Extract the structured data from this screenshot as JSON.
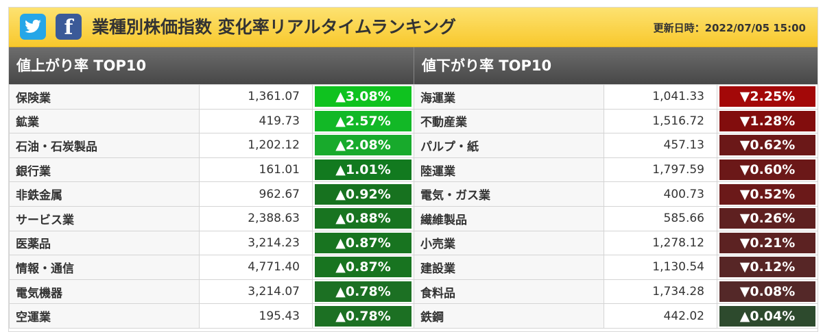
{
  "header": {
    "title": "業種別株価指数 変化率リアルタイムランキング",
    "updated": "更新日時：2022/07/05 15:00"
  },
  "share": {
    "twitter_icon": "twitter-bird-icon",
    "facebook_icon": "facebook-f-icon",
    "facebook_glyph": "f"
  },
  "colors": {
    "header_top": "#fde271",
    "header_bottom": "#f8c82c",
    "twitter": "#26a6e8",
    "facebook": "#3b5a98"
  },
  "gainers": {
    "title": "値上がり率 TOP10",
    "rows": [
      {
        "name": "保険業",
        "value": "1,361.07",
        "change": "▲3.08%",
        "color": "#0fc21f"
      },
      {
        "name": "鉱業",
        "value": "419.73",
        "change": "▲2.57%",
        "color": "#12b826"
      },
      {
        "name": "石油・石炭製品",
        "value": "1,202.12",
        "change": "▲2.08%",
        "color": "#18aa2c"
      },
      {
        "name": "銀行業",
        "value": "161.01",
        "change": "▲1.01%",
        "color": "#127a1f"
      },
      {
        "name": "非鉄金属",
        "value": "962.67",
        "change": "▲0.92%",
        "color": "#17721f"
      },
      {
        "name": "サービス業",
        "value": "2,388.63",
        "change": "▲0.88%",
        "color": "#187420"
      },
      {
        "name": "医薬品",
        "value": "3,214.23",
        "change": "▲0.87%",
        "color": "#187420"
      },
      {
        "name": "情報・通信",
        "value": "4,771.40",
        "change": "▲0.87%",
        "color": "#187420"
      },
      {
        "name": "電気機器",
        "value": "3,214.07",
        "change": "▲0.78%",
        "color": "#1c7023"
      },
      {
        "name": "空運業",
        "value": "195.43",
        "change": "▲0.78%",
        "color": "#1c7023"
      }
    ]
  },
  "losers": {
    "title": "値下がり率 TOP10",
    "rows": [
      {
        "name": "海運業",
        "value": "1,041.33",
        "change": "▼2.25%",
        "color": "#a30808"
      },
      {
        "name": "不動産業",
        "value": "1,516.72",
        "change": "▼1.28%",
        "color": "#820d0d"
      },
      {
        "name": "パルプ・紙",
        "value": "457.13",
        "change": "▼0.62%",
        "color": "#6b1818"
      },
      {
        "name": "陸運業",
        "value": "1,797.59",
        "change": "▼0.60%",
        "color": "#6b1818"
      },
      {
        "name": "電気・ガス業",
        "value": "400.73",
        "change": "▼0.52%",
        "color": "#6b1919"
      },
      {
        "name": "繊維製品",
        "value": "585.66",
        "change": "▼0.26%",
        "color": "#5e2020"
      },
      {
        "name": "小売業",
        "value": "1,278.12",
        "change": "▼0.21%",
        "color": "#5c2222"
      },
      {
        "name": "建設業",
        "value": "1,130.54",
        "change": "▼0.12%",
        "color": "#572626"
      },
      {
        "name": "食料品",
        "value": "1,734.28",
        "change": "▼0.08%",
        "color": "#542828"
      },
      {
        "name": "鉄鋼",
        "value": "442.02",
        "change": "▲0.04%",
        "color": "#2d4a2d"
      }
    ]
  }
}
